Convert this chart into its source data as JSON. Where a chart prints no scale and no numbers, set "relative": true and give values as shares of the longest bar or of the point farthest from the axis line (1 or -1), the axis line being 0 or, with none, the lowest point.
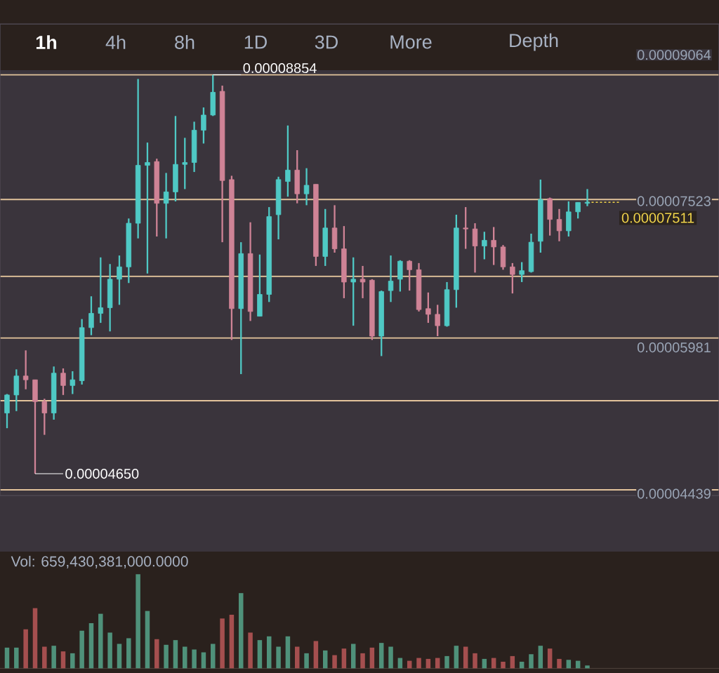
{
  "chart_data": [
    {
      "type": "candlestick",
      "categories": [
        null,
        null,
        null,
        null,
        null,
        null,
        null,
        null,
        null,
        null,
        null,
        null,
        null,
        null,
        null,
        null,
        null,
        null,
        null,
        null,
        null,
        null,
        null,
        null,
        null,
        null,
        null,
        null,
        null,
        null,
        null,
        null,
        null,
        null,
        null,
        null,
        null,
        null,
        null,
        null,
        null,
        null,
        null,
        null,
        null,
        null,
        null,
        null,
        null,
        null,
        null,
        null,
        null,
        null,
        null,
        null,
        null,
        null,
        null,
        null,
        null,
        null,
        null
      ],
      "ohlc": [
        [
          5.29e-05,
          5.49e-05,
          5.13e-05,
          5.48e-05
        ],
        [
          5.48e-05,
          5.75e-05,
          5.31e-05,
          5.68e-05
        ],
        [
          5.68e-05,
          5.95e-05,
          5.54e-05,
          5.64e-05
        ],
        [
          5.64e-05,
          5.64e-05,
          4.65e-05,
          5.41e-05
        ],
        [
          5.41e-05,
          5.44e-05,
          5.06e-05,
          5.29e-05
        ],
        [
          5.29e-05,
          5.78e-05,
          5.22e-05,
          5.71e-05
        ],
        [
          5.71e-05,
          5.76e-05,
          5.48e-05,
          5.58e-05
        ],
        [
          5.58e-05,
          5.73e-05,
          5.49e-05,
          5.64e-05
        ],
        [
          5.63e-05,
          6.28e-05,
          5.59e-05,
          6.19e-05
        ],
        [
          6.19e-05,
          6.52e-05,
          6.11e-05,
          6.34e-05
        ],
        [
          6.34e-05,
          6.93e-05,
          6.24e-05,
          6.4e-05
        ],
        [
          6.4e-05,
          6.86e-05,
          6.15e-05,
          6.7e-05
        ],
        [
          6.7e-05,
          6.95e-05,
          6.43e-05,
          6.83e-05
        ],
        [
          6.83e-05,
          7.34e-05,
          6.66e-05,
          7.29e-05
        ],
        [
          7.29e-05,
          8.81e-05,
          7.13e-05,
          7.9e-05
        ],
        [
          7.9e-05,
          8.14e-05,
          6.76e-05,
          7.93e-05
        ],
        [
          7.94e-05,
          7.97e-05,
          7.15e-05,
          7.5e-05
        ],
        [
          7.5e-05,
          7.82e-05,
          7.13e-05,
          7.62e-05
        ],
        [
          7.62e-05,
          8.42e-05,
          7.52e-05,
          7.91e-05
        ],
        [
          7.91e-05,
          8.19e-05,
          7.65e-05,
          7.93e-05
        ],
        [
          7.93e-05,
          8.36e-05,
          7.83e-05,
          8.27e-05
        ],
        [
          8.27e-05,
          8.51e-05,
          8.13e-05,
          8.43e-05
        ],
        [
          8.43e-05,
          8.854e-05,
          8.42e-05,
          8.67e-05
        ],
        [
          8.68e-05,
          8.74e-05,
          7.09e-05,
          7.74e-05
        ],
        [
          7.75e-05,
          7.79e-05,
          6.06e-05,
          6.39e-05
        ],
        [
          6.39e-05,
          7.09e-05,
          5.7e-05,
          6.97e-05
        ],
        [
          6.97e-05,
          7.3e-05,
          6.26e-05,
          6.36e-05
        ],
        [
          6.31e-05,
          6.96e-05,
          6.31e-05,
          6.54e-05
        ],
        [
          6.54e-05,
          7.46e-05,
          6.46e-05,
          7.36e-05
        ],
        [
          7.38e-05,
          7.78e-05,
          7.12e-05,
          7.75e-05
        ],
        [
          7.73e-05,
          8.32e-05,
          7.57e-05,
          7.85e-05
        ],
        [
          7.85e-05,
          8.06e-05,
          7.5e-05,
          7.6e-05
        ],
        [
          7.6e-05,
          7.87e-05,
          7.48e-05,
          7.69e-05
        ],
        [
          7.7e-05,
          7.7e-05,
          6.84e-05,
          6.94e-05
        ],
        [
          6.94e-05,
          7.44e-05,
          6.84e-05,
          7.24e-05
        ],
        [
          7.24e-05,
          7.48e-05,
          6.98e-05,
          7.02e-05
        ],
        [
          7.02e-05,
          7.26e-05,
          6.5e-05,
          6.67e-05
        ],
        [
          6.67e-05,
          6.93e-05,
          6.21e-05,
          6.7e-05
        ],
        [
          6.7e-05,
          6.84e-05,
          6.5e-05,
          6.67e-05
        ],
        [
          6.69e-05,
          6.7e-05,
          6.06e-05,
          6.1e-05
        ],
        [
          6.1e-05,
          6.58e-05,
          5.89e-05,
          6.57e-05
        ],
        [
          6.58e-05,
          6.95e-05,
          6.46e-05,
          6.68e-05
        ],
        [
          6.7e-05,
          6.9e-05,
          6.57e-05,
          6.89e-05
        ],
        [
          6.89e-05,
          6.9e-05,
          6.58e-05,
          6.8e-05
        ],
        [
          6.8e-05,
          6.87e-05,
          6.36e-05,
          6.38e-05
        ],
        [
          6.39e-05,
          6.56e-05,
          6.24e-05,
          6.33e-05
        ],
        [
          6.33e-05,
          6.43e-05,
          6.1e-05,
          6.21e-05
        ],
        [
          6.21e-05,
          6.67e-05,
          6.2e-05,
          6.59e-05
        ],
        [
          6.59e-05,
          7.38e-05,
          6.4e-05,
          7.24e-05
        ],
        [
          7.24e-05,
          7.46e-05,
          7.02e-05,
          7.23e-05
        ],
        [
          7.23e-05,
          7.29e-05,
          6.77e-05,
          7.05e-05
        ],
        [
          7.05e-05,
          7.2e-05,
          6.91e-05,
          7.11e-05
        ],
        [
          7.11e-05,
          7.25e-05,
          6.85e-05,
          7.04e-05
        ],
        [
          7.04e-05,
          7.06e-05,
          6.8e-05,
          6.83e-05
        ],
        [
          6.83e-05,
          6.87e-05,
          6.55e-05,
          6.75e-05
        ],
        [
          6.75e-05,
          6.88e-05,
          6.67e-05,
          6.79e-05
        ],
        [
          6.78e-05,
          7.18e-05,
          6.77e-05,
          7.09e-05
        ],
        [
          7.1e-05,
          7.75e-05,
          6.98e-05,
          7.54e-05
        ],
        [
          7.55e-05,
          7.56e-05,
          7.16e-05,
          7.33e-05
        ],
        [
          7.33e-05,
          7.44e-05,
          7.1e-05,
          7.21e-05
        ],
        [
          7.21e-05,
          7.52e-05,
          7.15e-05,
          7.41e-05
        ],
        [
          7.41e-05,
          7.51e-05,
          7.34e-05,
          7.51e-05
        ],
        [
          7.5e-05,
          7.65e-05,
          7.47e-05,
          7.511e-05
        ]
      ],
      "colors": [
        "#4fc9c5",
        "#4fc9c5",
        "#cf8396",
        "#cf8396",
        "#cf8396",
        "#4fc9c5",
        "#cf8396",
        "#4fc9c5",
        "#4fc9c5",
        "#4fc9c5",
        "#4fc9c5",
        "#4fc9c5",
        "#4fc9c5",
        "#4fc9c5",
        "#4fc9c5",
        "#4fc9c5",
        "#cf8396",
        "#4fc9c5",
        "#4fc9c5",
        "#4fc9c5",
        "#4fc9c5",
        "#4fc9c5",
        "#4fc9c5",
        "#cf8396",
        "#cf8396",
        "#4fc9c5",
        "#cf8396",
        "#4fc9c5",
        "#4fc9c5",
        "#4fc9c5",
        "#4fc9c5",
        "#cf8396",
        "#4fc9c5",
        "#cf8396",
        "#4fc9c5",
        "#cf8396",
        "#cf8396",
        "#4fc9c5",
        "#cf8396",
        "#cf8396",
        "#4fc9c5",
        "#4fc9c5",
        "#4fc9c5",
        "#cf8396",
        "#cf8396",
        "#cf8396",
        "#cf8396",
        "#4fc9c5",
        "#4fc9c5",
        "#cf8396",
        "#cf8396",
        "#4fc9c5",
        "#cf8396",
        "#cf8396",
        "#cf8396",
        "#4fc9c5",
        "#4fc9c5",
        "#4fc9c5",
        "#cf8396",
        "#cf8396",
        "#4fc9c5",
        "#4fc9c5",
        "#4fc9c5"
      ],
      "ylim": [
        4.42e-05,
        9.39e-05
      ],
      "yticks": [
        {
          "value": 9.064e-05,
          "label": "0.00009064"
        },
        {
          "value": 7.523e-05,
          "label": "0.00007523"
        },
        {
          "value": 5.981e-05,
          "label": "0.00005981"
        },
        {
          "value": 4.439e-05,
          "label": "0.00004439"
        }
      ],
      "ref_lines": [
        {
          "axis": "y",
          "value": 8.854e-05,
          "color": "#e2c39b"
        },
        {
          "axis": "y",
          "value": 7.54e-05,
          "color": "#e2c39b"
        },
        {
          "axis": "y",
          "value": 6.73e-05,
          "color": "#e2c39b"
        },
        {
          "axis": "y",
          "value": 6.08e-05,
          "color": "#e2c39b"
        },
        {
          "axis": "y",
          "value": 5.42e-05,
          "color": "#e2c39b"
        },
        {
          "axis": "y",
          "value": 4.48e-05,
          "color": "#e2c39b"
        },
        {
          "axis": "y",
          "value": 7.511e-05,
          "label": "0.00007511",
          "color": "#f2d54a",
          "line_style": "dashed"
        }
      ],
      "annotations": [
        {
          "text": "0.00008854",
          "y": 8.854e-05
        },
        "0.00004650",
        "1h",
        "4h",
        "8h",
        "1D",
        "3D",
        "More",
        "Depth"
      ]
    },
    {
      "type": "bar",
      "relative": true,
      "title": "Vol: 659,430,381,000.0000",
      "categories": [
        null,
        null,
        null,
        null,
        null,
        null,
        null,
        null,
        null,
        null,
        null,
        null,
        null,
        null,
        null,
        null,
        null,
        null,
        null,
        null,
        null,
        null,
        null,
        null,
        null,
        null,
        null,
        null,
        null,
        null,
        null,
        null,
        null,
        null,
        null,
        null,
        null,
        null,
        null,
        null,
        null,
        null,
        null,
        null,
        null,
        null,
        null,
        null,
        null,
        null,
        null,
        null,
        null,
        null,
        null,
        null,
        null,
        null,
        null,
        null,
        null,
        null,
        null
      ],
      "values": [
        0.22,
        0.22,
        0.415,
        0.64,
        0.23,
        0.24,
        0.18,
        0.16,
        0.4,
        0.48,
        0.58,
        0.38,
        0.26,
        0.32,
        1,
        0.61,
        0.31,
        0.25,
        0.3,
        0.23,
        0.2,
        0.17,
        0.26,
        0.53,
        0.57,
        0.8,
        0.38,
        0.3,
        0.34,
        0.23,
        0.34,
        0.23,
        0.16,
        0.29,
        0.19,
        0.14,
        0.21,
        0.26,
        0.16,
        0.22,
        0.27,
        0.23,
        0.11,
        0.08,
        0.11,
        0.1,
        0.11,
        0.13,
        0.24,
        0.23,
        0.16,
        0.1,
        0.11,
        0.07,
        0.13,
        0.07,
        0.15,
        0.24,
        0.21,
        0.1,
        0.09,
        0.08,
        0.03
      ],
      "colors": [
        "#4f917a",
        "#4f917a",
        "#a54f4f",
        "#a54f4f",
        "#a54f4f",
        "#4f917a",
        "#a54f4f",
        "#4f917a",
        "#4f917a",
        "#4f917a",
        "#4f917a",
        "#4f917a",
        "#4f917a",
        "#4f917a",
        "#4f917a",
        "#4f917a",
        "#a54f4f",
        "#4f917a",
        "#4f917a",
        "#4f917a",
        "#4f917a",
        "#4f917a",
        "#4f917a",
        "#a54f4f",
        "#a54f4f",
        "#4f917a",
        "#a54f4f",
        "#4f917a",
        "#4f917a",
        "#4f917a",
        "#4f917a",
        "#a54f4f",
        "#4f917a",
        "#a54f4f",
        "#4f917a",
        "#a54f4f",
        "#a54f4f",
        "#4f917a",
        "#a54f4f",
        "#a54f4f",
        "#4f917a",
        "#4f917a",
        "#4f917a",
        "#a54f4f",
        "#a54f4f",
        "#a54f4f",
        "#a54f4f",
        "#4f917a",
        "#4f917a",
        "#a54f4f",
        "#a54f4f",
        "#4f917a",
        "#a54f4f",
        "#a54f4f",
        "#a54f4f",
        "#4f917a",
        "#4f917a",
        "#4f917a",
        "#a54f4f",
        "#a54f4f",
        "#4f917a",
        "#4f917a",
        "#4f917a"
      ]
    }
  ]
}
